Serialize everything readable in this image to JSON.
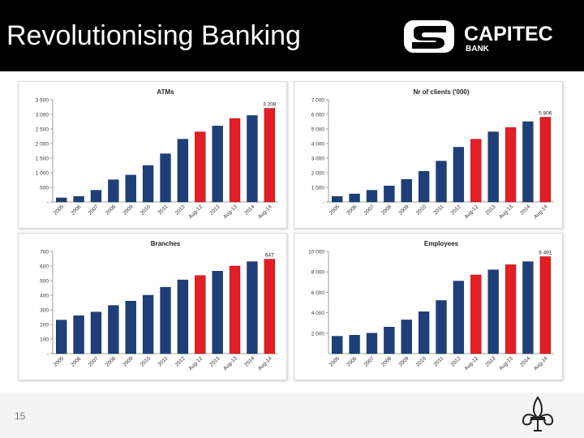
{
  "slide": {
    "title": "Revolutionising Banking",
    "page_number": "15",
    "logo": {
      "brand": "CAPITEC",
      "sub": "BANK"
    }
  },
  "colors": {
    "blue": "#1f3f7a",
    "red": "#e31e24",
    "header_bg": "#000000"
  },
  "chart_data": [
    {
      "type": "bar",
      "title": "ATMs",
      "categories": [
        "2005",
        "2006",
        "2007",
        "2008",
        "2009",
        "2010",
        "2011",
        "2012",
        "Aug-12",
        "2013",
        "Aug-13",
        "2014",
        "Aug-14"
      ],
      "values": [
        140,
        190,
        400,
        760,
        920,
        1250,
        1650,
        2150,
        2400,
        2600,
        2860,
        2960,
        3208
      ],
      "highlight": [
        false,
        false,
        false,
        false,
        false,
        false,
        false,
        false,
        true,
        false,
        true,
        false,
        true
      ],
      "yticks": [
        "-",
        "500",
        "1 000",
        "1 500",
        "2 000",
        "2 500",
        "3 000",
        "3 500"
      ],
      "ylim": [
        0,
        3500
      ],
      "data_labels": [
        {
          "index": 12,
          "text": "3 208"
        }
      ],
      "grid": false,
      "legend": "none"
    },
    {
      "type": "bar",
      "title": "Nr of clients ('000)",
      "categories": [
        "2005",
        "2006",
        "2007",
        "2008",
        "2009",
        "2010",
        "2011",
        "2012",
        "Aug-12",
        "2013",
        "Aug-13",
        "2014",
        "Aug-14"
      ],
      "values": [
        380,
        550,
        800,
        1100,
        1550,
        2100,
        2800,
        3750,
        4300,
        4800,
        5100,
        5500,
        5806
      ],
      "highlight": [
        false,
        false,
        false,
        false,
        false,
        false,
        false,
        false,
        true,
        false,
        true,
        false,
        true
      ],
      "yticks": [
        "-",
        "1 000",
        "2 000",
        "3 000",
        "4 000",
        "5 000",
        "6 000",
        "7 000"
      ],
      "ylim": [
        0,
        7000
      ],
      "data_labels": [
        {
          "index": 12,
          "text": "5 806"
        }
      ],
      "grid": false,
      "legend": "none"
    },
    {
      "type": "bar",
      "title": "Branches",
      "categories": [
        "2005",
        "2006",
        "2007",
        "2008",
        "2009",
        "2010",
        "2011",
        "2012",
        "Aug-12",
        "2013",
        "Aug-13",
        "2014",
        "Aug-14"
      ],
      "values": [
        230,
        260,
        285,
        330,
        360,
        400,
        455,
        505,
        535,
        565,
        600,
        630,
        647
      ],
      "highlight": [
        false,
        false,
        false,
        false,
        false,
        false,
        false,
        false,
        true,
        false,
        true,
        false,
        true
      ],
      "yticks": [
        "-",
        "100",
        "200",
        "300",
        "400",
        "500",
        "600",
        "700"
      ],
      "ylim": [
        0,
        700
      ],
      "data_labels": [
        {
          "index": 12,
          "text": "647"
        }
      ],
      "grid": false,
      "legend": "none"
    },
    {
      "type": "bar",
      "title": "Employees",
      "categories": [
        "2005",
        "2006",
        "2007",
        "2008",
        "2009",
        "2010",
        "2011",
        "2012",
        "Aug-12",
        "2013",
        "Aug-13",
        "2014",
        "Aug-14"
      ],
      "values": [
        1700,
        1800,
        2000,
        2600,
        3300,
        4100,
        5200,
        7100,
        7700,
        8200,
        8700,
        9000,
        9491
      ],
      "highlight": [
        false,
        false,
        false,
        false,
        false,
        false,
        false,
        false,
        true,
        false,
        true,
        false,
        true
      ],
      "yticks": [
        "2 000",
        "4 000",
        "6 000",
        "8 000",
        "10 000"
      ],
      "ylim": [
        0,
        10000
      ],
      "tick_values": [
        2000,
        4000,
        6000,
        8000,
        10000
      ],
      "data_labels": [
        {
          "index": 12,
          "text": "9 491"
        }
      ],
      "grid": false,
      "legend": "none"
    }
  ]
}
